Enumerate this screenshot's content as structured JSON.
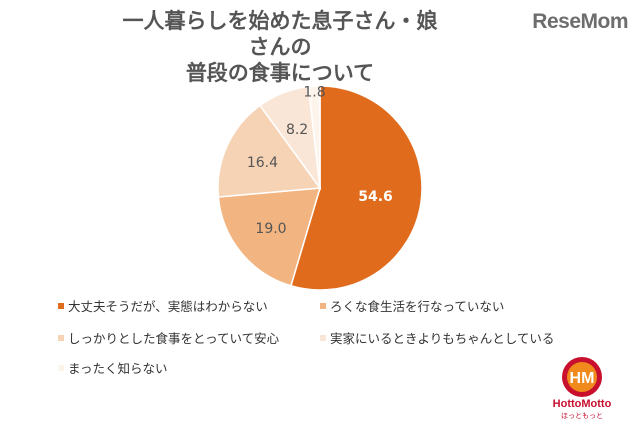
{
  "chart_data": {
    "type": "pie",
    "title_lines": [
      "一人暮らしを始めた息子さん・娘さんの",
      "普段の食事について"
    ],
    "categories": [
      "大丈夫そうだが、実態はわからない",
      "ろくな食生活を行なっていない",
      "しっかりとした食事をとっていて安心",
      "実家にいるときよりもちゃんとしている",
      "まったく知らない"
    ],
    "values": [
      54.6,
      19.0,
      16.4,
      8.2,
      1.8
    ],
    "value_labels": [
      "54.6",
      "19.0",
      "16.4",
      "8.2",
      "1.8"
    ],
    "colors": [
      "#e06b1c",
      "#f2b481",
      "#f7d3b5",
      "#fae6d6",
      "#fdf4ec"
    ],
    "label_colors": [
      "#ffffff",
      "#555555",
      "#555555",
      "#555555",
      "#555555"
    ],
    "start_angle_deg": 0,
    "direction": "clockwise",
    "legend_position": "bottom"
  },
  "watermark": "ReseMom",
  "logo": {
    "letters": "HM",
    "name": "HottoMotto",
    "sub": "ほっともっと",
    "colors": {
      "ring": "#c8102e",
      "fill": "#f08a1c"
    }
  }
}
